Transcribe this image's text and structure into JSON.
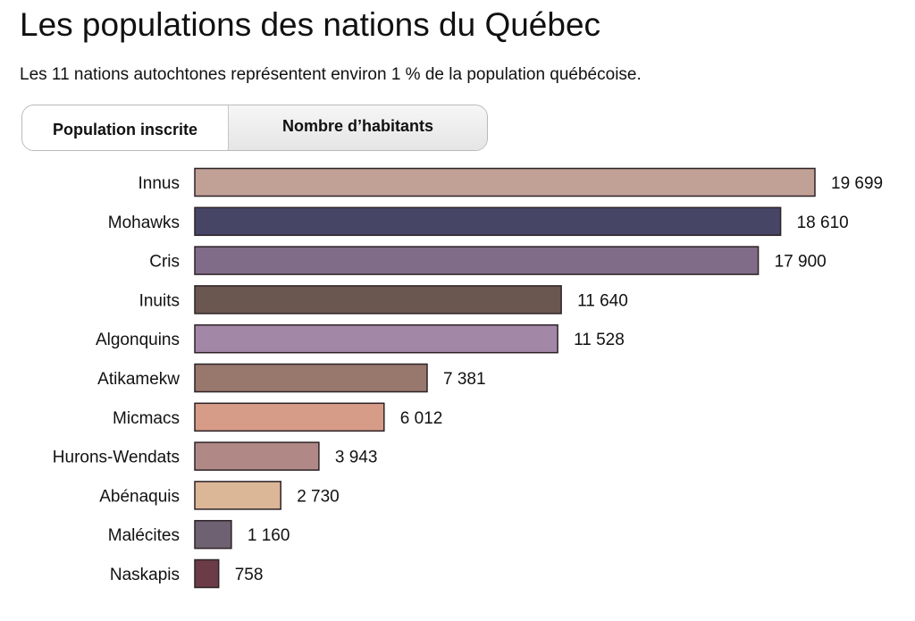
{
  "header": {
    "title": "Les populations des nations du Québec",
    "subtitle": "Les 11 nations autochtones représentent environ 1 % de la population québécoise."
  },
  "tabs": [
    {
      "label": "Population inscrite",
      "active": true
    },
    {
      "label": "Nombre d’habitants",
      "active": false
    }
  ],
  "chart_data": {
    "type": "bar",
    "orientation": "horizontal",
    "categories": [
      "Innus",
      "Mohawks",
      "Cris",
      "Inuits",
      "Algonquins",
      "Atikamekw",
      "Micmacs",
      "Hurons-Wendats",
      "Abénaquis",
      "Malécites",
      "Naskapis"
    ],
    "values": [
      19699,
      18610,
      17900,
      11640,
      11528,
      7381,
      6012,
      3943,
      2730,
      1160,
      758
    ],
    "value_labels": [
      "19 699",
      "18 610",
      "17 900",
      "11 640",
      "11 528",
      "7 381",
      "6 012",
      "3 943",
      "2 730",
      "1 160",
      "758"
    ],
    "colors": [
      "#c1a096",
      "#474566",
      "#806c88",
      "#6a5750",
      "#a287a6",
      "#98776d",
      "#d69c88",
      "#b08986",
      "#dbb798",
      "#6e6171",
      "#6b3c47"
    ],
    "xlim": [
      0,
      19699
    ],
    "grid": false,
    "legend": "none"
  }
}
